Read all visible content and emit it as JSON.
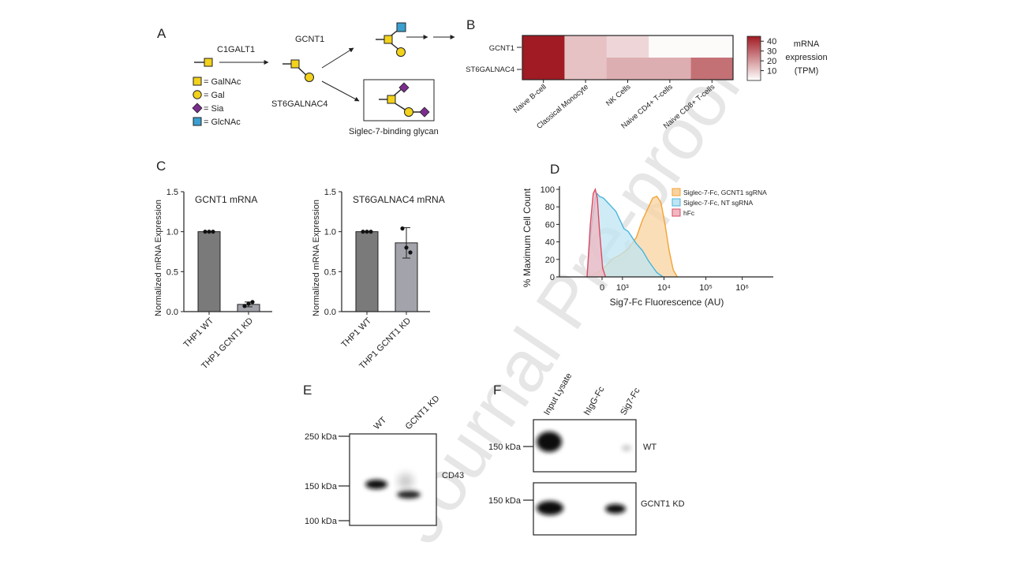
{
  "watermark": "Journal Pre-proof",
  "panel_a": {
    "label": "A",
    "enzymes": [
      "C1GALT1",
      "GCNT1",
      "ST6GALNAC4"
    ],
    "legend": [
      {
        "shape": "square",
        "color": "#f2d21b",
        "label": "= GalNAc"
      },
      {
        "shape": "circle",
        "color": "#f2d21b",
        "label": "= Gal"
      },
      {
        "shape": "diamond",
        "color": "#7b2d8e",
        "label": "= Sia"
      },
      {
        "shape": "square",
        "color": "#3aa0d0",
        "label": "= GlcNAc"
      }
    ],
    "box_caption": "Siglec-7-binding glycan"
  },
  "panel_b": {
    "label": "B",
    "chart_data": {
      "type": "heatmap",
      "rows": [
        "GCNT1",
        "ST6GALNAC4"
      ],
      "columns": [
        "Naive B-cell",
        "Classical Monocyte",
        "NK Cells",
        "Naive CD4+ T-cells",
        "Naive CD8+ T-cells"
      ],
      "values": [
        [
          45,
          12,
          8,
          1,
          1
        ],
        [
          45,
          12,
          16,
          16,
          28
        ]
      ],
      "colorbar": {
        "ticks": [
          "40",
          "30",
          "20",
          "10"
        ],
        "range": [
          0,
          45
        ],
        "low_color": "#ffffff",
        "high_color": "#a01b23"
      },
      "colorbar_label": [
        "mRNA",
        "expression",
        "(TPM)"
      ]
    }
  },
  "panel_c": {
    "label": "C",
    "chart_data": [
      {
        "type": "bar",
        "title": "GCNT1 mRNA",
        "ylabel": "Normalized mRNA Expression",
        "categories": [
          "THP1 WT",
          "THP1 GCNT1 KD"
        ],
        "values": [
          1.0,
          0.09
        ],
        "errors": [
          0,
          0.03
        ],
        "points": [
          [
            1.0,
            1.0,
            1.0
          ],
          [
            0.07,
            0.1,
            0.12
          ]
        ],
        "colors": [
          "#7a7a7a",
          "#a3a3ab"
        ],
        "ylim": [
          0,
          1.5
        ],
        "yticks": [
          "0.0",
          "0.5",
          "1.0",
          "1.5"
        ]
      },
      {
        "type": "bar",
        "title": "ST6GALNAC4 mRNA",
        "ylabel": "Normalized mRNA Expression",
        "categories": [
          "THP1 WT",
          "THP1 GCNT1 KD"
        ],
        "values": [
          1.0,
          0.86
        ],
        "errors": [
          0,
          0.19
        ],
        "points": [
          [
            1.0,
            1.0,
            1.0
          ],
          [
            1.04,
            0.8,
            0.74
          ]
        ],
        "colors": [
          "#7a7a7a",
          "#a3a3ab"
        ],
        "ylim": [
          0,
          1.5
        ],
        "yticks": [
          "0.0",
          "0.5",
          "1.0",
          "1.5"
        ]
      }
    ]
  },
  "panel_d": {
    "label": "D",
    "chart_data": {
      "type": "area",
      "xlabel": "Sig7-Fc Fluorescence (AU)",
      "ylabel": "% Maximum Cell Count",
      "yticks": [
        "0",
        "20",
        "40",
        "60",
        "80",
        "100"
      ],
      "xticks": [
        "0",
        "10³",
        "10⁴",
        "10⁵",
        "10⁶"
      ],
      "ylim": [
        0,
        100
      ],
      "series": [
        {
          "name": "Siglec-7-Fc, GCNT1 sgRNA",
          "color": "#f4a233",
          "fill": "#f8d3a0",
          "x": [
            0.0,
            0.25,
            0.45,
            0.6,
            0.8,
            1.0,
            1.2,
            1.35,
            1.5,
            1.6,
            1.7,
            1.8,
            1.9,
            2.0,
            2.1,
            2.2
          ],
          "y": [
            0,
            5,
            12,
            20,
            25,
            32,
            45,
            65,
            80,
            90,
            92,
            85,
            60,
            30,
            8,
            0
          ]
        },
        {
          "name": "Siglec-7-Fc, NT sgRNA",
          "color": "#49b5dd",
          "fill": "#bfe5f3",
          "x": [
            0.0,
            0.1,
            0.2,
            0.25,
            0.3,
            0.4,
            0.5,
            0.6,
            0.7,
            0.8,
            0.9,
            1.0,
            1.1,
            1.2,
            1.35,
            1.5,
            1.7,
            1.85
          ],
          "y": [
            0,
            55,
            90,
            95,
            92,
            90,
            85,
            80,
            75,
            65,
            55,
            52,
            45,
            38,
            30,
            18,
            5,
            0
          ]
        },
        {
          "name": "hFc",
          "color": "#d94c63",
          "fill": "#f0b8c2",
          "x": [
            0.0,
            0.08,
            0.15,
            0.2,
            0.25,
            0.3,
            0.38,
            0.45
          ],
          "y": [
            0,
            60,
            95,
            100,
            90,
            55,
            10,
            0
          ]
        }
      ]
    }
  },
  "panel_e": {
    "label": "E",
    "lanes": [
      "WT",
      "GCNT1 KD"
    ],
    "markers": [
      "250 kDa",
      "150 kDa",
      "100 kDa"
    ],
    "band_label": "CD43"
  },
  "panel_f": {
    "label": "F",
    "lanes": [
      "Input Lysate",
      "hIgG-Fc",
      "Sig7-Fc"
    ],
    "rows": [
      {
        "marker": "150 kDa",
        "label": "WT"
      },
      {
        "marker": "150 kDa",
        "label": "GCNT1 KD"
      }
    ]
  }
}
